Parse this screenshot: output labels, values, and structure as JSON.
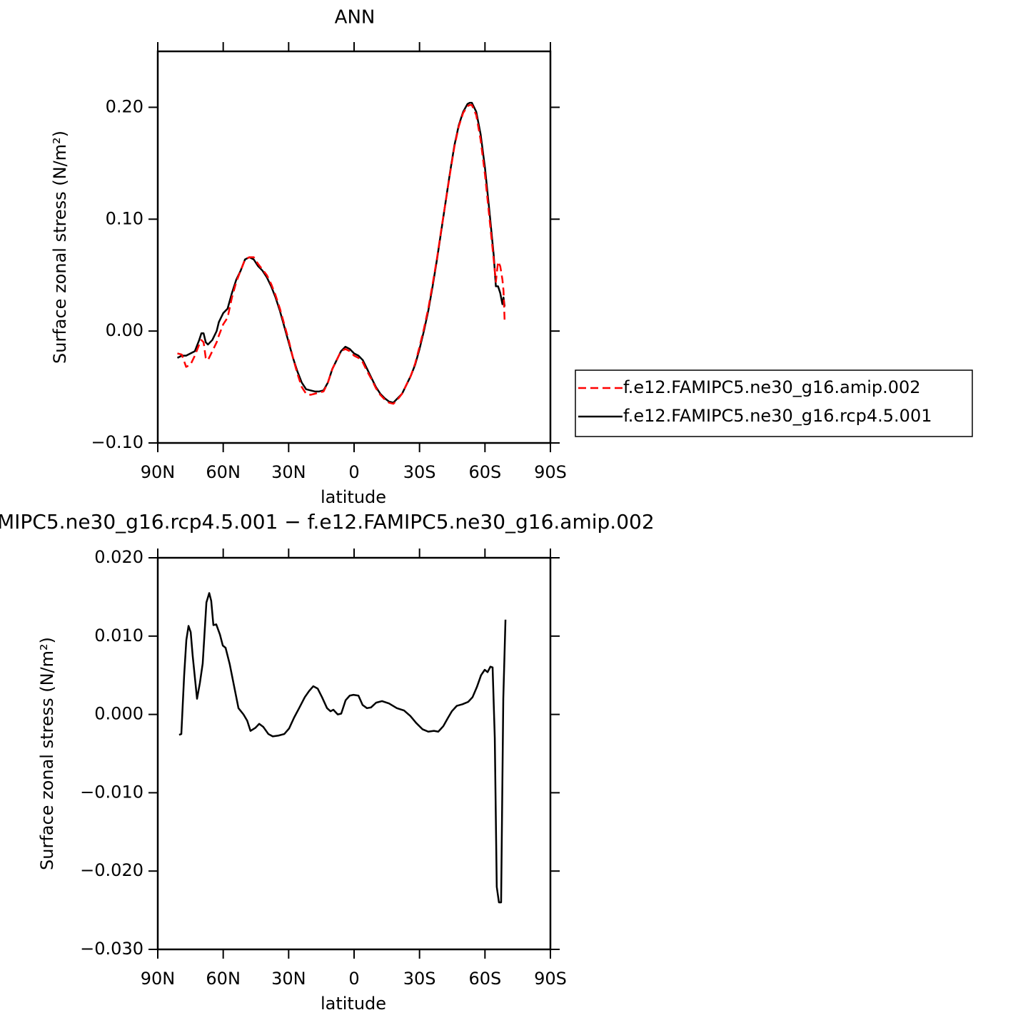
{
  "chart_data": [
    {
      "type": "line",
      "title": "ANN",
      "x_label": "latitude",
      "y_label": "Surface zonal stress (N/m²)",
      "xlim": [
        90,
        -90
      ],
      "xticks": [
        {
          "value": 90,
          "label": "90N"
        },
        {
          "value": 60,
          "label": "60N"
        },
        {
          "value": 30,
          "label": "30N"
        },
        0,
        {
          "value": -30,
          "label": "30S"
        },
        {
          "value": -60,
          "label": "60S"
        },
        {
          "value": -90,
          "label": "90S"
        }
      ],
      "ylim": [
        -0.1,
        0.25
      ],
      "yticks": [
        {
          "value": -0.1,
          "label": "−0.10"
        },
        {
          "value": 0,
          "label": "0.00"
        },
        {
          "value": 0.1,
          "label": "0.10"
        },
        {
          "value": 0.2,
          "label": "0.20"
        }
      ],
      "legend": "right",
      "x": [
        81,
        79,
        77,
        75,
        73,
        71,
        70,
        69,
        68,
        67,
        65,
        63,
        62,
        60,
        58,
        56,
        54,
        52,
        50,
        48,
        46,
        44,
        42,
        40,
        38,
        36,
        34,
        32,
        30,
        28,
        26,
        24,
        22,
        20,
        18,
        16,
        14,
        12,
        10,
        8,
        6,
        4,
        2,
        0,
        -2,
        -4,
        -6,
        -8,
        -10,
        -12,
        -14,
        -16,
        -18,
        -20,
        -22,
        -24,
        -26,
        -28,
        -30,
        -32,
        -34,
        -36,
        -38,
        -40,
        -42,
        -44,
        -46,
        -48,
        -50,
        -52,
        -53,
        -54,
        -56,
        -58,
        -60,
        -62,
        -64,
        -65,
        -66,
        -67,
        -68,
        -68.5,
        -69
      ],
      "series": [
        {
          "name": "f.e12.FAMIPC5.ne30_g16.amip.002",
          "color": "#ff0000",
          "style": "dashed",
          "values": [
            -0.02,
            -0.021,
            -0.032,
            -0.03,
            -0.022,
            -0.012,
            -0.008,
            -0.01,
            -0.024,
            -0.026,
            -0.018,
            -0.01,
            -0.004,
            0.006,
            0.012,
            0.03,
            0.044,
            0.054,
            0.064,
            0.066,
            0.066,
            0.06,
            0.055,
            0.05,
            0.042,
            0.032,
            0.02,
            0.006,
            -0.008,
            -0.024,
            -0.038,
            -0.05,
            -0.056,
            -0.057,
            -0.056,
            -0.055,
            -0.054,
            -0.046,
            -0.034,
            -0.026,
            -0.018,
            -0.016,
            -0.018,
            -0.022,
            -0.024,
            -0.028,
            -0.036,
            -0.043,
            -0.051,
            -0.057,
            -0.061,
            -0.064,
            -0.065,
            -0.061,
            -0.056,
            -0.048,
            -0.04,
            -0.029,
            -0.014,
            0.002,
            0.02,
            0.042,
            0.065,
            0.091,
            0.116,
            0.141,
            0.165,
            0.183,
            0.195,
            0.201,
            0.202,
            0.202,
            0.193,
            0.171,
            0.14,
            0.102,
            0.064,
            0.044,
            0.062,
            0.058,
            0.046,
            0.036,
            0.01
          ]
        },
        {
          "name": "f.e12.FAMIPC5.ne30_g16.rcp4.5.001",
          "color": "#000000",
          "style": "solid",
          "values": [
            -0.024,
            -0.022,
            -0.022,
            -0.02,
            -0.018,
            -0.008,
            -0.002,
            -0.002,
            -0.01,
            -0.012,
            -0.008,
            0.0,
            0.008,
            0.016,
            0.02,
            0.034,
            0.046,
            0.054,
            0.064,
            0.066,
            0.064,
            0.058,
            0.054,
            0.048,
            0.04,
            0.03,
            0.018,
            0.004,
            -0.01,
            -0.024,
            -0.036,
            -0.046,
            -0.052,
            -0.053,
            -0.054,
            -0.054,
            -0.053,
            -0.046,
            -0.034,
            -0.026,
            -0.018,
            -0.014,
            -0.016,
            -0.02,
            -0.022,
            -0.026,
            -0.034,
            -0.042,
            -0.05,
            -0.056,
            -0.06,
            -0.063,
            -0.064,
            -0.06,
            -0.056,
            -0.048,
            -0.04,
            -0.03,
            -0.016,
            0.0,
            0.018,
            0.04,
            0.064,
            0.09,
            0.116,
            0.142,
            0.166,
            0.184,
            0.196,
            0.203,
            0.204,
            0.204,
            0.196,
            0.176,
            0.146,
            0.108,
            0.068,
            0.04,
            0.04,
            0.034,
            0.024,
            0.03,
            0.022
          ]
        }
      ]
    },
    {
      "type": "line",
      "title": "MIPC5.ne30_g16.rcp4.5.001 − f.e12.FAMIPC5.ne30_g16.amip.002",
      "x_label": "latitude",
      "y_label": "Surface zonal stress (N/m²)",
      "xlim": [
        90,
        -90
      ],
      "xticks": [
        {
          "value": 90,
          "label": "90N"
        },
        {
          "value": 60,
          "label": "60N"
        },
        {
          "value": 30,
          "label": "30N"
        },
        0,
        {
          "value": -30,
          "label": "30S"
        },
        {
          "value": -60,
          "label": "60S"
        },
        {
          "value": -90,
          "label": "90S"
        }
      ],
      "ylim": [
        -0.03,
        0.02
      ],
      "yticks": [
        {
          "value": -0.03,
          "label": "−0.030"
        },
        {
          "value": -0.02,
          "label": "−0.020"
        },
        {
          "value": -0.01,
          "label": "−0.010"
        },
        {
          "value": 0,
          "label": "0.000"
        },
        {
          "value": 0.01,
          "label": "0.010"
        },
        {
          "value": 0.02,
          "label": "0.020"
        }
      ],
      "color": "#000000",
      "x": [
        80.2,
        79.2,
        77.9,
        76.9,
        75.9,
        74.9,
        74,
        72,
        70.7,
        69.4,
        67.7,
        66.4,
        65.5,
        64.5,
        63.2,
        61.5,
        60.2,
        58.9,
        57,
        55,
        53,
        50.7,
        49,
        47.5,
        45.2,
        43.5,
        41.6,
        39.3,
        37.3,
        34.7,
        32,
        29.8,
        27.5,
        25.2,
        22.6,
        20.6,
        18.7,
        16.7,
        14.7,
        12.4,
        10.8,
        9.5,
        7.5,
        5.9,
        3.9,
        2,
        0.3,
        -2,
        -3.9,
        -5.9,
        -7.8,
        -10.1,
        -12.8,
        -16,
        -19.6,
        -22.9,
        -25.8,
        -28.5,
        -31.4,
        -34,
        -36.6,
        -38.6,
        -40.9,
        -42.9,
        -44.8,
        -47.1,
        -49.7,
        -52.3,
        -54.3,
        -56.3,
        -58.2,
        -59.9,
        -61.2,
        -62.5,
        -63.5,
        -64.5,
        -65.4,
        -66.4,
        -67.4,
        -68.4,
        -69.4
      ],
      "values": [
        -0.0026,
        -0.0025,
        0.005,
        0.0095,
        0.0113,
        0.0105,
        0.0075,
        0.002,
        0.004,
        0.0065,
        0.0143,
        0.0155,
        0.0145,
        0.0114,
        0.0115,
        0.0102,
        0.0088,
        0.0085,
        0.0064,
        0.0036,
        0.0008,
        0.0,
        -0.0008,
        -0.0021,
        -0.0017,
        -0.0012,
        -0.0016,
        -0.0025,
        -0.0028,
        -0.0027,
        -0.0025,
        -0.0018,
        -0.0004,
        0.0008,
        0.0022,
        0.003,
        0.0036,
        0.0033,
        0.0022,
        0.0008,
        0.0004,
        0.0006,
        0.0,
        0.0001,
        0.0018,
        0.0024,
        0.0025,
        0.0024,
        0.0012,
        0.0008,
        0.0009,
        0.0015,
        0.0017,
        0.0014,
        0.0008,
        0.0005,
        -0.0002,
        -0.0011,
        -0.0019,
        -0.0022,
        -0.0021,
        -0.0022,
        -0.0015,
        -0.0005,
        0.0004,
        0.0011,
        0.0013,
        0.0016,
        0.0022,
        0.0035,
        0.005,
        0.0057,
        0.0054,
        0.0061,
        0.006,
        -0.003,
        -0.022,
        -0.024,
        -0.024,
        0.002,
        0.0121
      ]
    }
  ]
}
